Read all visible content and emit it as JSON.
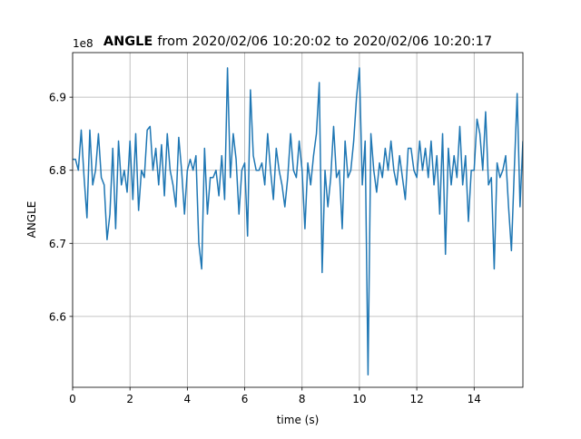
{
  "chart_data": {
    "type": "line",
    "title_parts": [
      "ANGLE",
      "from 2020/02/06 10:20:02 to 2020/02/06 10:20:17"
    ],
    "offset_label": "1e8",
    "xlabel": "time (s)",
    "ylabel": "ANGLE",
    "x": [
      0,
      0.1,
      0.2,
      0.3,
      0.4,
      0.5,
      0.6,
      0.7,
      0.8,
      0.9,
      1,
      1.1,
      1.2,
      1.3,
      1.4,
      1.5,
      1.6,
      1.7,
      1.8,
      1.9,
      2,
      2.1,
      2.2,
      2.3,
      2.4,
      2.5,
      2.6,
      2.7,
      2.8,
      2.9,
      3,
      3.1,
      3.2,
      3.3,
      3.4,
      3.5,
      3.6,
      3.7,
      3.8,
      3.9,
      4,
      4.1,
      4.2,
      4.3,
      4.4,
      4.5,
      4.6,
      4.7,
      4.8,
      4.9,
      5,
      5.1,
      5.2,
      5.3,
      5.4,
      5.5,
      5.6,
      5.7,
      5.8,
      5.9,
      6,
      6.1,
      6.2,
      6.3,
      6.4,
      6.5,
      6.6,
      6.7,
      6.8,
      6.9,
      7,
      7.1,
      7.2,
      7.3,
      7.4,
      7.5,
      7.6,
      7.7,
      7.8,
      7.9,
      8,
      8.1,
      8.2,
      8.3,
      8.4,
      8.5,
      8.6,
      8.7,
      8.8,
      8.9,
      9,
      9.1,
      9.2,
      9.3,
      9.4,
      9.5,
      9.6,
      9.7,
      9.8,
      9.9,
      10,
      10.1,
      10.2,
      10.3,
      10.4,
      10.5,
      10.6,
      10.7,
      10.8,
      10.9,
      11,
      11.1,
      11.2,
      11.3,
      11.4,
      11.5,
      11.6,
      11.7,
      11.8,
      11.9,
      12,
      12.1,
      12.2,
      12.3,
      12.4,
      12.5,
      12.6,
      12.7,
      12.8,
      12.9,
      13,
      13.1,
      13.2,
      13.3,
      13.4,
      13.5,
      13.6,
      13.7,
      13.8,
      13.9,
      14,
      14.1,
      14.2,
      14.3,
      14.4,
      14.5,
      14.6,
      14.7,
      14.8,
      14.9,
      15,
      15.1,
      15.2,
      15.3,
      15.4,
      15.5,
      15.6,
      15.7
    ],
    "series": [
      {
        "color": "#1f77b4",
        "values": [
          6.815,
          6.815,
          6.8,
          6.855,
          6.79,
          6.735,
          6.855,
          6.78,
          6.8,
          6.85,
          6.79,
          6.78,
          6.705,
          6.74,
          6.83,
          6.72,
          6.84,
          6.78,
          6.8,
          6.77,
          6.84,
          6.76,
          6.85,
          6.745,
          6.8,
          6.79,
          6.855,
          6.86,
          6.8,
          6.83,
          6.78,
          6.835,
          6.765,
          6.85,
          6.8,
          6.78,
          6.75,
          6.845,
          6.8,
          6.74,
          6.8,
          6.815,
          6.8,
          6.82,
          6.7,
          6.665,
          6.83,
          6.74,
          6.79,
          6.79,
          6.8,
          6.765,
          6.82,
          6.76,
          6.94,
          6.79,
          6.85,
          6.815,
          6.74,
          6.8,
          6.81,
          6.71,
          6.91,
          6.82,
          6.8,
          6.8,
          6.81,
          6.78,
          6.85,
          6.8,
          6.76,
          6.83,
          6.8,
          6.78,
          6.75,
          6.79,
          6.85,
          6.8,
          6.79,
          6.84,
          6.8,
          6.72,
          6.81,
          6.78,
          6.82,
          6.85,
          6.92,
          6.66,
          6.8,
          6.75,
          6.79,
          6.86,
          6.79,
          6.8,
          6.72,
          6.84,
          6.79,
          6.8,
          6.84,
          6.9,
          6.94,
          6.78,
          6.84,
          6.52,
          6.85,
          6.8,
          6.77,
          6.81,
          6.79,
          6.83,
          6.8,
          6.84,
          6.8,
          6.78,
          6.82,
          6.79,
          6.76,
          6.83,
          6.83,
          6.8,
          6.79,
          6.84,
          6.8,
          6.83,
          6.79,
          6.84,
          6.78,
          6.82,
          6.74,
          6.85,
          6.685,
          6.83,
          6.78,
          6.82,
          6.79,
          6.86,
          6.78,
          6.82,
          6.73,
          6.8,
          6.8,
          6.87,
          6.85,
          6.8,
          6.88,
          6.78,
          6.79,
          6.665,
          6.81,
          6.79,
          6.8,
          6.82,
          6.75,
          6.69,
          6.8,
          6.905,
          6.75,
          6.84
        ]
      }
    ],
    "xlim": [
      0,
      15.7
    ],
    "ylim": [
      6.503,
      6.961
    ],
    "xticks": [
      0,
      2,
      4,
      6,
      8,
      10,
      12,
      14
    ],
    "yticks": [
      6.6,
      6.7,
      6.8,
      6.9
    ],
    "grid": true
  }
}
